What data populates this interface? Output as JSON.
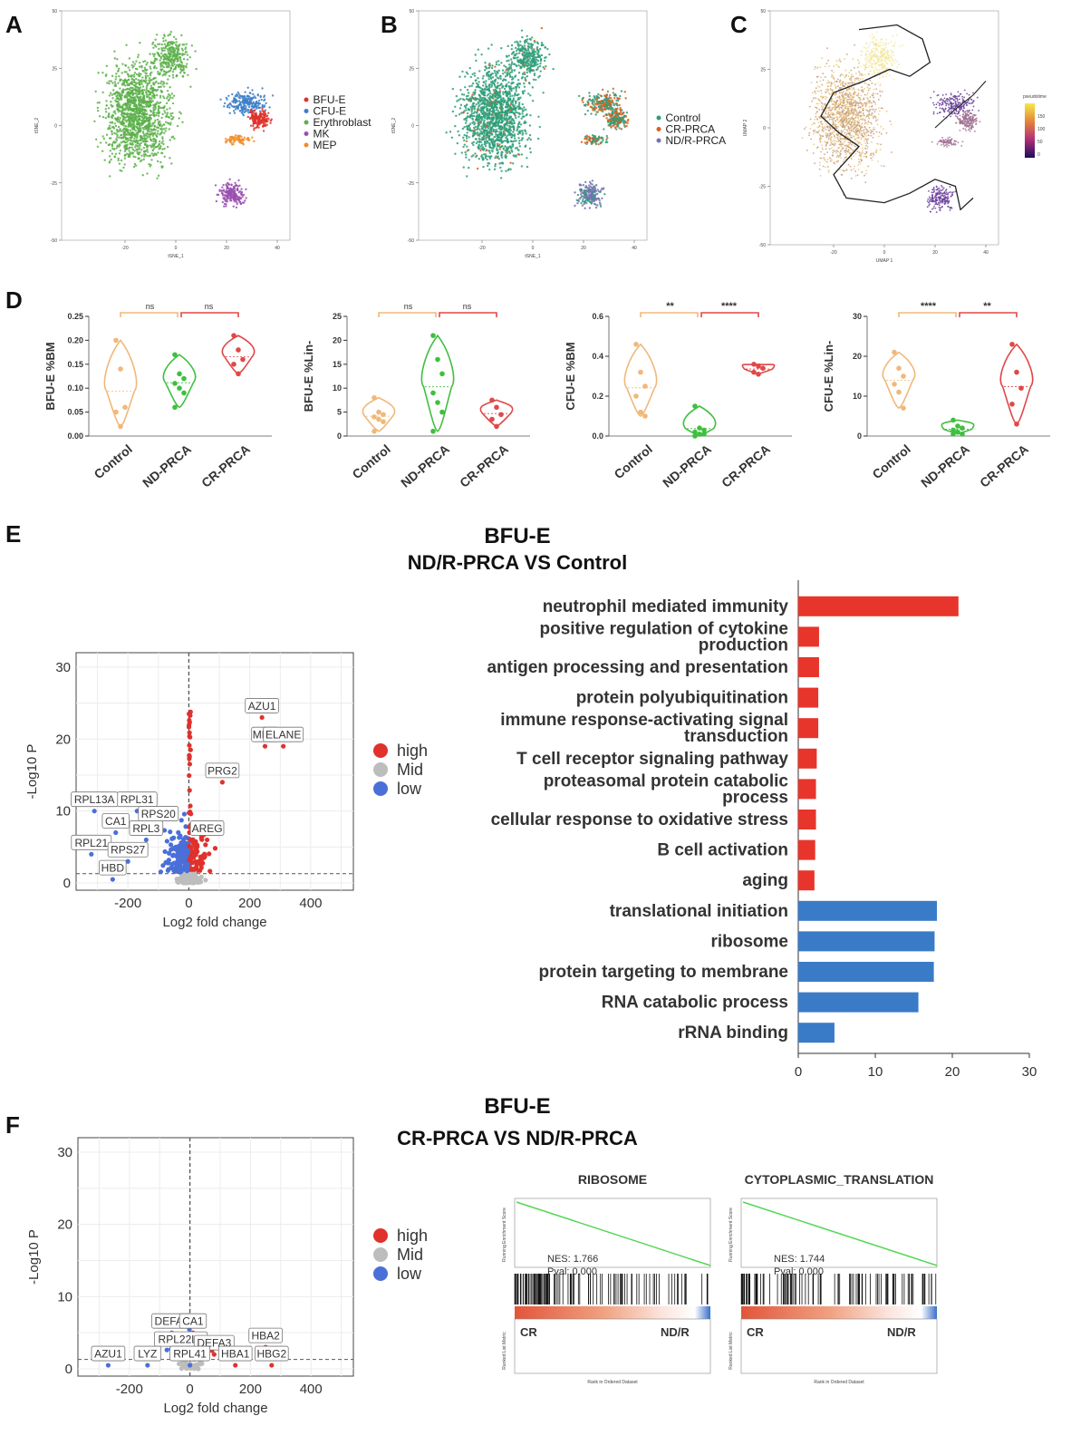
{
  "panel_labels": [
    "A",
    "B",
    "C",
    "D",
    "E",
    "F"
  ],
  "chart_data": [
    {
      "id": "A",
      "type": "scatter",
      "xlabel": "tSNE_1",
      "ylabel": "tSNE_2",
      "xticks": [
        -20,
        0,
        20,
        40
      ],
      "yticks": [
        -50,
        -25,
        0,
        25,
        50
      ],
      "xlim": [
        -45,
        45
      ],
      "ylim": [
        -50,
        50
      ],
      "legend": [
        "BFU-E",
        "CFU-E",
        "Erythroblast",
        "MK",
        "MEP"
      ],
      "colors": [
        "#e0312c",
        "#3c7fc8",
        "#5cb04a",
        "#9a4fb2",
        "#f28c28"
      ]
    },
    {
      "id": "B",
      "type": "scatter",
      "xlabel": "tSNE_1",
      "ylabel": "tSNE_2",
      "xticks": [
        -20,
        0,
        20,
        40
      ],
      "yticks": [
        -50,
        -25,
        0,
        25,
        50
      ],
      "xlim": [
        -45,
        45
      ],
      "ylim": [
        -50,
        50
      ],
      "legend": [
        "Control",
        "CR-PRCA",
        "ND/R-PRCA"
      ],
      "colors": [
        "#2e9e79",
        "#d95f1c",
        "#7570b3"
      ]
    },
    {
      "id": "C",
      "type": "scatter",
      "xlabel": "UMAP 1",
      "ylabel": "UMAP 2",
      "xticks": [
        -20,
        0,
        20,
        40
      ],
      "yticks": [
        -50,
        -25,
        0,
        25,
        50
      ],
      "xlim": [
        -45,
        45
      ],
      "ylim": [
        -50,
        50
      ],
      "colorbar_title": "pseudotime",
      "colorbar_ticks": [
        150,
        100,
        50,
        0
      ]
    },
    {
      "id": "D1",
      "type": "violin",
      "ylabel": "BFU-E %BM",
      "categories": [
        "Control",
        "ND-PRCA",
        "CR-PRCA"
      ],
      "yticks": [
        "0.00",
        "0.05",
        "0.10",
        "0.15",
        "0.20",
        "0.25"
      ],
      "ylim": [
        0,
        0.25
      ],
      "colors": [
        "#f0b87a",
        "#3fbf3f",
        "#e04848"
      ],
      "points": [
        [
          0.2,
          0.14,
          0.06,
          0.05,
          0.02
        ],
        [
          0.17,
          0.13,
          0.12,
          0.11,
          0.1,
          0.09,
          0.06
        ],
        [
          0.21,
          0.18,
          0.16,
          0.15,
          0.13
        ]
      ],
      "sig": [
        "ns",
        "ns"
      ]
    },
    {
      "id": "D2",
      "type": "violin",
      "ylabel": "BFU-E %Lin-",
      "categories": [
        "Control",
        "ND-PRCA",
        "CR-PRCA"
      ],
      "yticks": [
        "0",
        "5",
        "10",
        "15",
        "20",
        "25"
      ],
      "ylim": [
        0,
        25
      ],
      "colors": [
        "#f0b87a",
        "#3fbf3f",
        "#e04848"
      ],
      "points": [
        [
          8,
          5,
          4.5,
          4,
          3.5,
          3,
          1
        ],
        [
          21,
          16,
          13,
          9,
          7,
          5,
          1
        ],
        [
          7.5,
          6,
          4.5,
          3.5,
          2
        ]
      ],
      "sig": [
        "ns",
        "ns"
      ]
    },
    {
      "id": "D3",
      "type": "violin",
      "ylabel": "CFU-E %BM",
      "categories": [
        "Control",
        "ND-PRCA",
        "CR-PRCA"
      ],
      "yticks": [
        "0.0",
        "0.2",
        "0.4",
        "0.6"
      ],
      "ylim": [
        0,
        0.6
      ],
      "colors": [
        "#f0b87a",
        "#3fbf3f",
        "#e04848"
      ],
      "points": [
        [
          0.46,
          0.32,
          0.25,
          0.2,
          0.12,
          0.1
        ],
        [
          0.15,
          0.04,
          0.03,
          0.02,
          0.01,
          0.01,
          0.0
        ],
        [
          0.36,
          0.35,
          0.34,
          0.32,
          0.31
        ]
      ],
      "sig": [
        "**",
        "****"
      ]
    },
    {
      "id": "D4",
      "type": "violin",
      "ylabel": "CFU-E %Lin-",
      "categories": [
        "Control",
        "ND-PRCA",
        "CR-PRCA"
      ],
      "yticks": [
        "0",
        "10",
        "20",
        "30"
      ],
      "ylim": [
        0,
        30
      ],
      "colors": [
        "#f0b87a",
        "#3fbf3f",
        "#e04848"
      ],
      "points": [
        [
          21,
          17,
          15,
          13,
          11,
          7
        ],
        [
          4,
          2.5,
          2,
          1.5,
          1,
          0.5,
          0.5
        ],
        [
          23,
          16,
          12,
          8,
          3
        ]
      ],
      "sig": [
        "****",
        "**"
      ]
    },
    {
      "id": "E-volcano",
      "type": "scatter",
      "xlabel": "Log2 fold change",
      "ylabel": "-Log10 P",
      "xticks": [
        "-200",
        "0",
        "200",
        "400"
      ],
      "yticks": [
        "0",
        "10",
        "20",
        "30"
      ],
      "xlim": [
        -370,
        540
      ],
      "ylim": [
        -1,
        32
      ],
      "legend": [
        "high",
        "Mid",
        "low"
      ],
      "legend_colors": [
        "#e0312c",
        "#bdbdbd",
        "#4a6fd8"
      ],
      "labels": [
        {
          "gene": "AZU1",
          "x": 240,
          "y": 23
        },
        {
          "gene": "MPO",
          "x": 250,
          "y": 19
        },
        {
          "gene": "ELANE",
          "x": 310,
          "y": 19
        },
        {
          "gene": "PRG2",
          "x": 110,
          "y": 14
        },
        {
          "gene": "AREG",
          "x": 60,
          "y": 6
        },
        {
          "gene": "RPL31",
          "x": -170,
          "y": 10
        },
        {
          "gene": "RPS20",
          "x": -100,
          "y": 8
        },
        {
          "gene": "RPL13A",
          "x": -310,
          "y": 10
        },
        {
          "gene": "CA1",
          "x": -240,
          "y": 7
        },
        {
          "gene": "RPL3",
          "x": -140,
          "y": 6
        },
        {
          "gene": "RPL21",
          "x": -320,
          "y": 4
        },
        {
          "gene": "RPS27",
          "x": -200,
          "y": 3
        },
        {
          "gene": "HBD",
          "x": -250,
          "y": 0.5
        }
      ]
    },
    {
      "id": "E-bar",
      "type": "bar",
      "title": "BFU-E",
      "subtitle": "ND/R-PRCA VS Control",
      "xticks": [
        "0",
        "10",
        "20",
        "30"
      ],
      "xlim": [
        0,
        30
      ],
      "categories": [
        "neutrophil mediated immunity",
        "positive regulation of cytokine production",
        "antigen processing and presentation",
        "protein polyubiquitination",
        "immune response-activating signal transduction",
        "T cell receptor signaling pathway",
        "proteasomal protein catabolic process",
        "cellular response to oxidative stress",
        "B cell activation",
        "aging",
        "translational initiation",
        "ribosome",
        "protein targeting to membrane",
        "RNA catabolic process",
        "rRNA binding"
      ],
      "category_lines": [
        [
          "neutrophil mediated immunity"
        ],
        [
          "positive regulation of cytokine",
          "production"
        ],
        [
          "antigen processing and presentation"
        ],
        [
          "protein polyubiquitination"
        ],
        [
          "immune response-activating signal",
          "transduction"
        ],
        [
          "T cell receptor signaling pathway"
        ],
        [
          "proteasomal protein catabolic",
          "process"
        ],
        [
          "cellular response to oxidative stress"
        ],
        [
          "B cell activation"
        ],
        [
          "aging"
        ],
        [
          "translational initiation"
        ],
        [
          "ribosome"
        ],
        [
          "protein targeting to membrane"
        ],
        [
          "RNA catabolic process"
        ],
        [
          "rRNA binding"
        ]
      ],
      "values": [
        20.8,
        2.7,
        2.7,
        2.6,
        2.6,
        2.4,
        2.3,
        2.3,
        2.2,
        2.1,
        18.0,
        17.7,
        17.6,
        15.6,
        4.7
      ],
      "colors": [
        "#e8352b",
        "#e8352b",
        "#e8352b",
        "#e8352b",
        "#e8352b",
        "#e8352b",
        "#e8352b",
        "#e8352b",
        "#e8352b",
        "#e8352b",
        "#3a7bc8",
        "#3a7bc8",
        "#3a7bc8",
        "#3a7bc8",
        "#3a7bc8"
      ]
    },
    {
      "id": "F-volcano",
      "type": "scatter",
      "title": "BFU-E",
      "subtitle": "CR-PRCA VS ND/R-PRCA",
      "xlabel": "Log2 fold change",
      "ylabel": "-Log10 P",
      "xticks": [
        "-200",
        "0",
        "200",
        "400"
      ],
      "yticks": [
        "0",
        "10",
        "20",
        "30"
      ],
      "xlim": [
        -370,
        540
      ],
      "ylim": [
        -1,
        32
      ],
      "legend": [
        "high",
        "Mid",
        "low"
      ],
      "legend_colors": [
        "#e0312c",
        "#bdbdbd",
        "#4a6fd8"
      ],
      "labels": [
        {
          "gene": "DEFA4",
          "x": -60,
          "y": 5
        },
        {
          "gene": "CA1",
          "x": 10,
          "y": 5
        },
        {
          "gene": "RPL22L1",
          "x": -30,
          "y": 2.5
        },
        {
          "gene": "DEFA3",
          "x": 80,
          "y": 2
        },
        {
          "gene": "HBA2",
          "x": 250,
          "y": 3
        },
        {
          "gene": "AZU1",
          "x": -270,
          "y": 0.5
        },
        {
          "gene": "LYZ",
          "x": -140,
          "y": 0.5
        },
        {
          "gene": "RPL41",
          "x": 0,
          "y": 0.5
        },
        {
          "gene": "HBA1",
          "x": 150,
          "y": 0.5
        },
        {
          "gene": "HBG2",
          "x": 270,
          "y": 0.5
        }
      ]
    },
    {
      "id": "F-gsea1",
      "type": "line",
      "title": "RIBOSOME",
      "nes": "NES: 1.766",
      "pval": "Pval: 0.000",
      "left_label": "CR",
      "right_label": "ND/R",
      "ylabel": "Running Enrichment Score",
      "ylabel2": "Ranked List Metric",
      "xlabel": "Rank in Ordered Dataset"
    },
    {
      "id": "F-gsea2",
      "type": "line",
      "title": "CYTOPLASMIC_TRANSLATION",
      "nes": "NES: 1.744",
      "pval": "Pval: 0.000",
      "left_label": "CR",
      "right_label": "ND/R",
      "ylabel": "Running Enrichment Score",
      "ylabel2": "Ranked List Metric",
      "xlabel": "Rank in Ordered Dataset"
    }
  ]
}
